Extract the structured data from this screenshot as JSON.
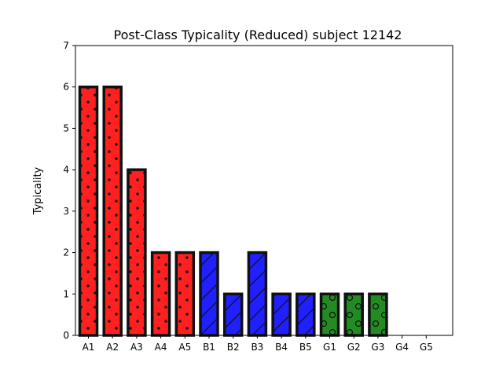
{
  "chart_data": {
    "type": "bar",
    "title": "Post-Class Typicality (Reduced) subject 12142",
    "xlabel": "",
    "ylabel": "Typicality",
    "ylim": [
      0,
      7
    ],
    "yticks": [
      0,
      1,
      2,
      3,
      4,
      5,
      6,
      7
    ],
    "grid": false,
    "categories": [
      "A1",
      "A2",
      "A3",
      "A4",
      "A5",
      "B1",
      "B2",
      "B3",
      "B4",
      "B5",
      "G1",
      "G2",
      "G3",
      "G4",
      "G5"
    ],
    "values": [
      6,
      6,
      4,
      2,
      2,
      2,
      1,
      2,
      1,
      1,
      1,
      1,
      1,
      0,
      0
    ],
    "group_colors": {
      "A": "#ff2020",
      "B": "#1f1fff",
      "G": "#228b22"
    },
    "group_hatches": {
      "A": "dots",
      "B": "diagonal",
      "G": "circles"
    }
  }
}
